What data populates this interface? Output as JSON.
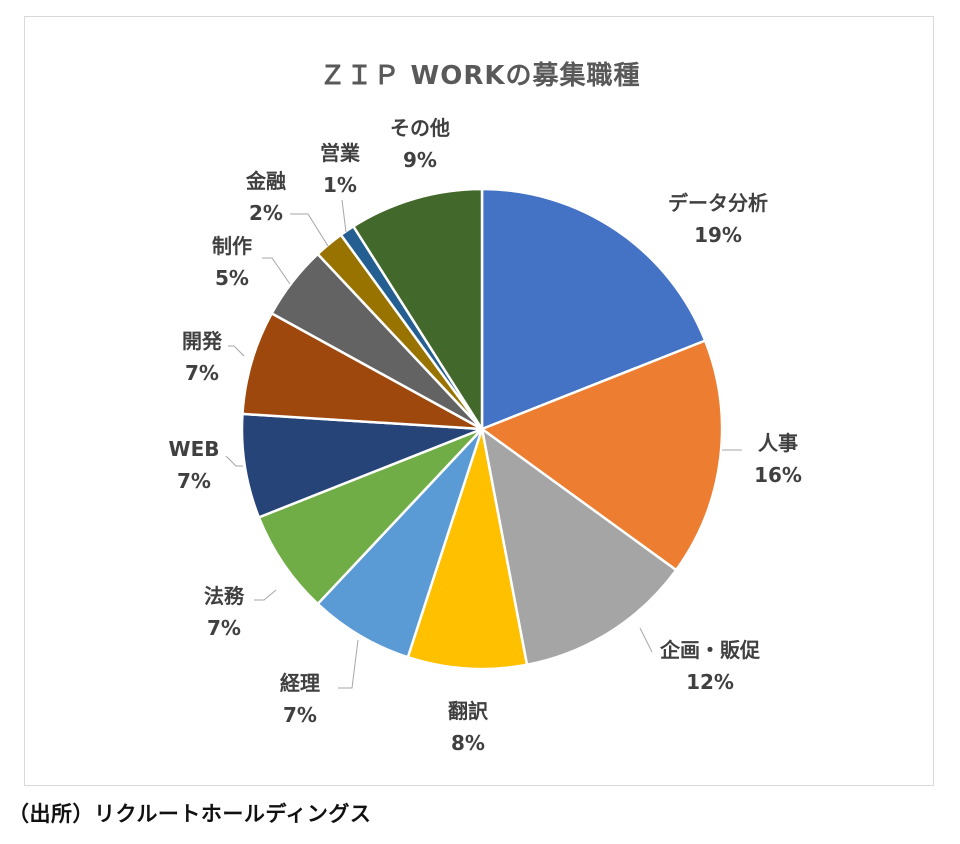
{
  "chart_data": {
    "type": "pie",
    "title": "ＺＩＰ WORKの募集職種",
    "slices": [
      {
        "label": "データ分析",
        "value": 19,
        "value_label": "19%",
        "color": "#4472C4"
      },
      {
        "label": "人事",
        "value": 16,
        "value_label": "16%",
        "color": "#ED7D31"
      },
      {
        "label": "企画・販促",
        "value": 12,
        "value_label": "12%",
        "color": "#A5A5A5"
      },
      {
        "label": "翻訳",
        "value": 8,
        "value_label": "8%",
        "color": "#FFC000"
      },
      {
        "label": "経理",
        "value": 7,
        "value_label": "7%",
        "color": "#5B9BD5"
      },
      {
        "label": "法務",
        "value": 7,
        "value_label": "7%",
        "color": "#70AD47"
      },
      {
        "label": "WEB",
        "value": 7,
        "value_label": "7%",
        "color": "#264478"
      },
      {
        "label": "開発",
        "value": 7,
        "value_label": "7%",
        "color": "#9E480E"
      },
      {
        "label": "制作",
        "value": 5,
        "value_label": "5%",
        "color": "#636363"
      },
      {
        "label": "金融",
        "value": 2,
        "value_label": "2%",
        "color": "#997300"
      },
      {
        "label": "営業",
        "value": 1,
        "value_label": "1%",
        "color": "#255E91"
      },
      {
        "label": "その他",
        "value": 9,
        "value_label": "9%",
        "color": "#43682B"
      }
    ]
  },
  "source_note": "（出所）リクルートホールディングス"
}
